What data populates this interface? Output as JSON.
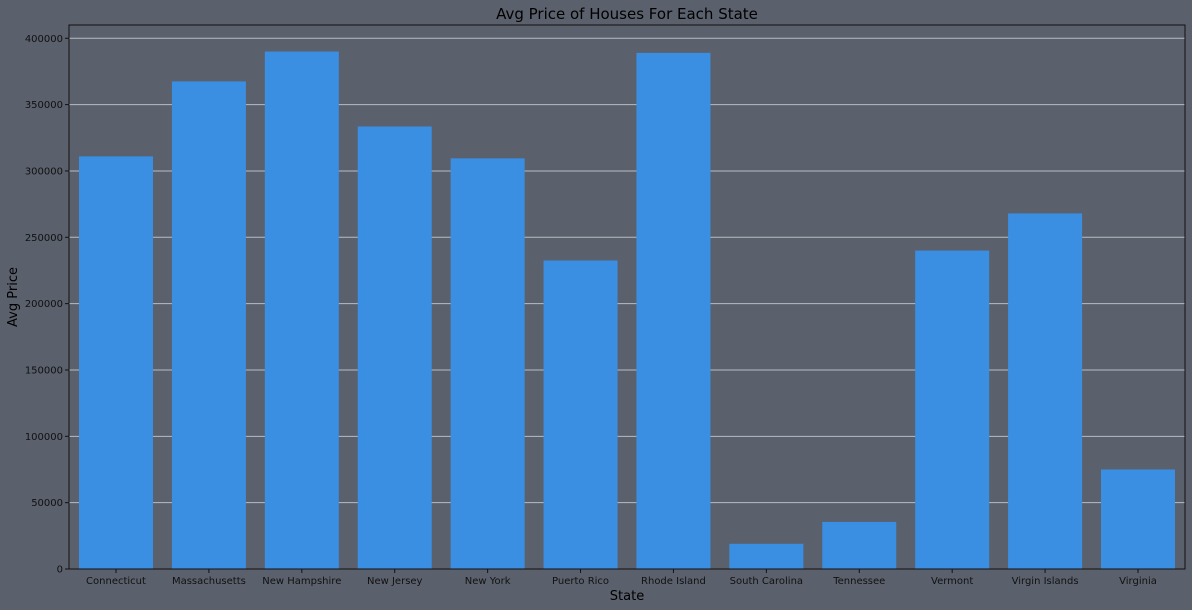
{
  "chart_data": {
    "type": "bar",
    "title": "Avg Price of Houses For Each State",
    "xlabel": "State",
    "ylabel": "Avg Price",
    "categories": [
      "Connecticut",
      "Massachusetts",
      "New Hampshire",
      "New Jersey",
      "New York",
      "Puerto Rico",
      "Rhode Island",
      "South Carolina",
      "Tennessee",
      "Vermont",
      "Virgin Islands",
      "Virginia"
    ],
    "values": [
      311000,
      367500,
      390000,
      333500,
      309500,
      232500,
      389000,
      19000,
      35500,
      240000,
      268000,
      75000
    ],
    "yticks": [
      0,
      50000,
      100000,
      150000,
      200000,
      250000,
      300000,
      350000,
      400000
    ],
    "ylim": [
      0,
      410000
    ],
    "grid": "y",
    "colors": {
      "bar": "#3a8fe3",
      "background": "#5a606c",
      "grid": "#b8bcc4",
      "axis": "#111111"
    }
  }
}
